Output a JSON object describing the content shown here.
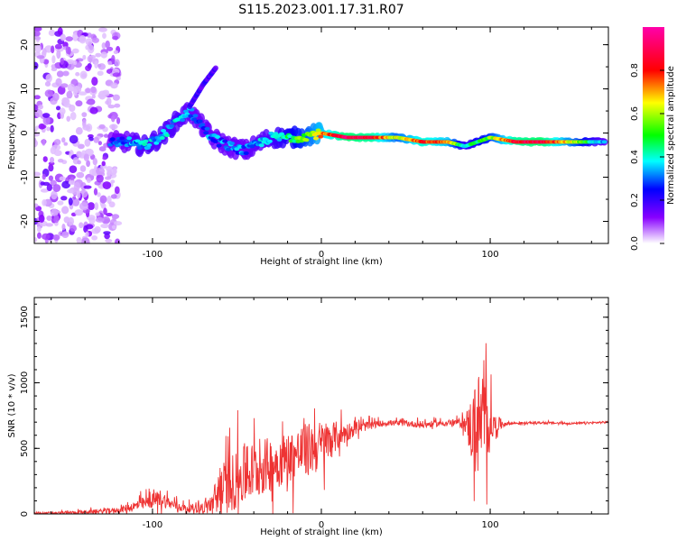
{
  "title": "S115.2023.001.17.31.R07",
  "chart_data": [
    {
      "type": "heatmap",
      "ylabel": "Frequency (Hz)",
      "xlabel": "Height of straight line (km)",
      "xlim": [
        -170,
        170
      ],
      "ylim": [
        -25,
        24
      ],
      "x_ticks": [
        -100,
        0,
        100
      ],
      "y_ticks": [
        -20,
        -10,
        0,
        10,
        20
      ],
      "colorbar": {
        "label": "Normalized spectral amplitude",
        "range": [
          0,
          1
        ],
        "ticks": [
          "0.0",
          "0.2",
          "0.4",
          "0.6",
          "0.8"
        ]
      },
      "grid": false,
      "ridge_points": [
        {
          "x": -125,
          "y": -2,
          "a": 0.25
        },
        {
          "x": -115,
          "y": -2,
          "a": 0.3
        },
        {
          "x": -105,
          "y": -3,
          "a": 0.35
        },
        {
          "x": -95,
          "y": -1,
          "a": 0.35
        },
        {
          "x": -85,
          "y": 3,
          "a": 0.35
        },
        {
          "x": -78,
          "y": 5,
          "a": 0.3
        },
        {
          "x": -65,
          "y": -1,
          "a": 0.3
        },
        {
          "x": -55,
          "y": -3,
          "a": 0.3
        },
        {
          "x": -45,
          "y": -4,
          "a": 0.3
        },
        {
          "x": -30,
          "y": -1,
          "a": 0.35
        },
        {
          "x": -15,
          "y": -1,
          "a": 0.5
        },
        {
          "x": 0,
          "y": 0,
          "a": 0.7
        },
        {
          "x": 15,
          "y": -1,
          "a": 0.9
        },
        {
          "x": 30,
          "y": -1,
          "a": 0.85
        },
        {
          "x": 45,
          "y": -1,
          "a": 0.6
        },
        {
          "x": 60,
          "y": -2,
          "a": 0.8
        },
        {
          "x": 75,
          "y": -2,
          "a": 0.7
        },
        {
          "x": 85,
          "y": -3,
          "a": 0.4
        },
        {
          "x": 100,
          "y": -1,
          "a": 0.55
        },
        {
          "x": 115,
          "y": -2,
          "a": 0.85
        },
        {
          "x": 130,
          "y": -2,
          "a": 0.9
        },
        {
          "x": 150,
          "y": -2,
          "a": 0.6
        },
        {
          "x": 168,
          "y": -2,
          "a": 0.3
        }
      ],
      "branch_points": [
        {
          "x": -78,
          "y": 6
        },
        {
          "x": -70,
          "y": 11
        },
        {
          "x": -62,
          "y": 15
        },
        {
          "x": -70,
          "y": 5
        }
      ],
      "noise_region": {
        "x": [
          -170,
          -120
        ],
        "y": [
          -25,
          24
        ]
      }
    },
    {
      "type": "line",
      "ylabel": "SNR (10 * v/v)",
      "xlabel": "Height of straight line (km)",
      "xlim": [
        -170,
        170
      ],
      "ylim": [
        0,
        1650
      ],
      "x_ticks": [
        -100,
        0,
        100
      ],
      "y_ticks": [
        0,
        500,
        1000,
        1500
      ],
      "grid": false,
      "series": [
        {
          "color": "#ee3333",
          "x": [
            -170,
            -150,
            -130,
            -120,
            -110,
            -100,
            -95,
            -90,
            -80,
            -70,
            -65,
            -60,
            -50,
            -40,
            -30,
            -20,
            -10,
            0,
            10,
            20,
            30,
            40,
            50,
            60,
            70,
            80,
            85,
            90,
            93,
            95,
            98,
            102,
            110,
            130,
            150,
            170
          ],
          "y": [
            5,
            10,
            20,
            30,
            60,
            100,
            120,
            80,
            40,
            50,
            70,
            180,
            260,
            330,
            380,
            430,
            480,
            520,
            600,
            650,
            680,
            695,
            690,
            680,
            690,
            700,
            690,
            640,
            680,
            700,
            690,
            680,
            690,
            695,
            690,
            700
          ],
          "spread": [
            10,
            15,
            25,
            30,
            60,
            80,
            100,
            60,
            40,
            60,
            120,
            280,
            330,
            320,
            300,
            280,
            300,
            280,
            150,
            70,
            40,
            30,
            30,
            40,
            30,
            30,
            80,
            450,
            600,
            500,
            450,
            120,
            15,
            12,
            12,
            12
          ]
        }
      ]
    }
  ]
}
